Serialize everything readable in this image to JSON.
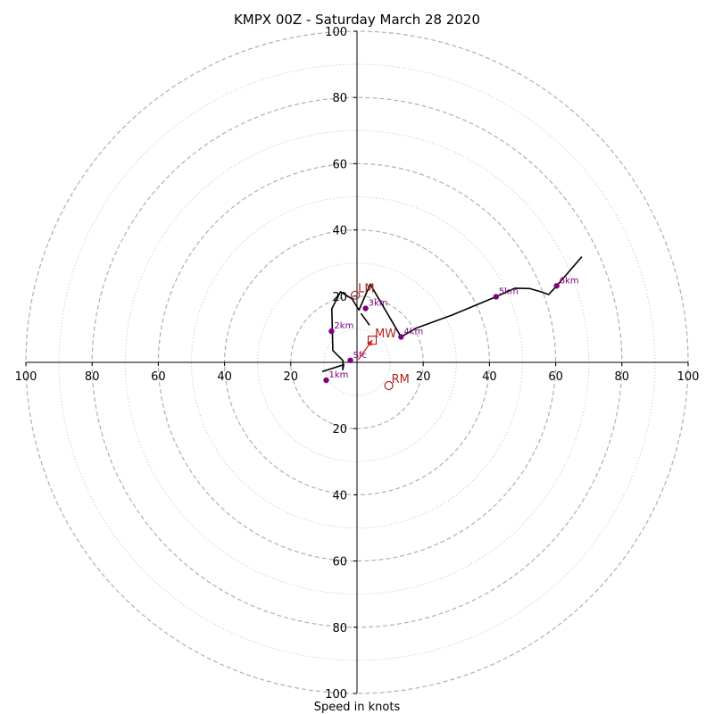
{
  "chart_data": {
    "type": "scatter",
    "title": "KMPX 00Z - Saturday March 28 2020",
    "xlabel": "Speed in knots",
    "range": [
      -100,
      100
    ],
    "ring_labels": [
      "100",
      "80",
      "60",
      "40",
      "20",
      "20",
      "40",
      "60",
      "80",
      "100"
    ],
    "major_rings": [
      20,
      40,
      60,
      80,
      100
    ],
    "minor_rings": [
      10,
      30,
      50,
      70,
      90
    ],
    "hodograph": [
      [
        -10.5,
        -2.8
      ],
      [
        -4,
        -0.7
      ],
      [
        -4.3,
        -2.2
      ],
      [
        -4.2,
        0.5
      ],
      [
        -7.3,
        3.6
      ],
      [
        -7.6,
        16.2
      ],
      [
        -5,
        21.3
      ],
      [
        -1.5,
        19.2
      ],
      [
        0.6,
        15.8
      ],
      [
        4,
        23.6
      ],
      [
        13.3,
        7.7
      ],
      [
        17.8,
        10.3
      ],
      [
        29,
        14.4
      ],
      [
        42,
        19.8
      ],
      [
        47.7,
        22.4
      ],
      [
        52.1,
        22.3
      ],
      [
        55.6,
        21.3
      ],
      [
        57.9,
        20.5
      ],
      [
        60.3,
        23.1
      ],
      [
        67.9,
        31.9
      ]
    ],
    "height_markers": [
      {
        "label": "Sfc",
        "u": -2,
        "v": 0.6
      },
      {
        "label": "1km",
        "u": -9.3,
        "v": -5.4
      },
      {
        "label": "2km",
        "u": -7.7,
        "v": 9.4
      },
      {
        "label": "3km",
        "u": 2.6,
        "v": 16.3
      },
      {
        "label": "4km",
        "u": 13.3,
        "v": 7.7
      },
      {
        "label": "5km",
        "u": 42,
        "v": 19.8
      },
      {
        "label": "6km",
        "u": 60.3,
        "v": 23.1
      }
    ],
    "side_segment": [
      [
        3.8,
        11.2
      ],
      [
        1.2,
        14.8
      ]
    ],
    "motions": [
      {
        "label": "LM",
        "u": -0.5,
        "v": 20.3,
        "marker": "circle"
      },
      {
        "label": "RM",
        "u": 9.6,
        "v": -7,
        "marker": "circle"
      },
      {
        "label": "MW",
        "u": 4.6,
        "v": 6.7,
        "marker": "square"
      }
    ],
    "shear_vector": {
      "from": [
        0.4,
        0.8
      ],
      "to": [
        4.6,
        6.7
      ]
    },
    "colors": {
      "grid": "#b0b0b0",
      "axis": "#000000",
      "hodograph": "#000000",
      "height_marker": "#800080",
      "storm_motion": "#b22222",
      "shear_arrow": "#d62020"
    },
    "grid": true
  }
}
